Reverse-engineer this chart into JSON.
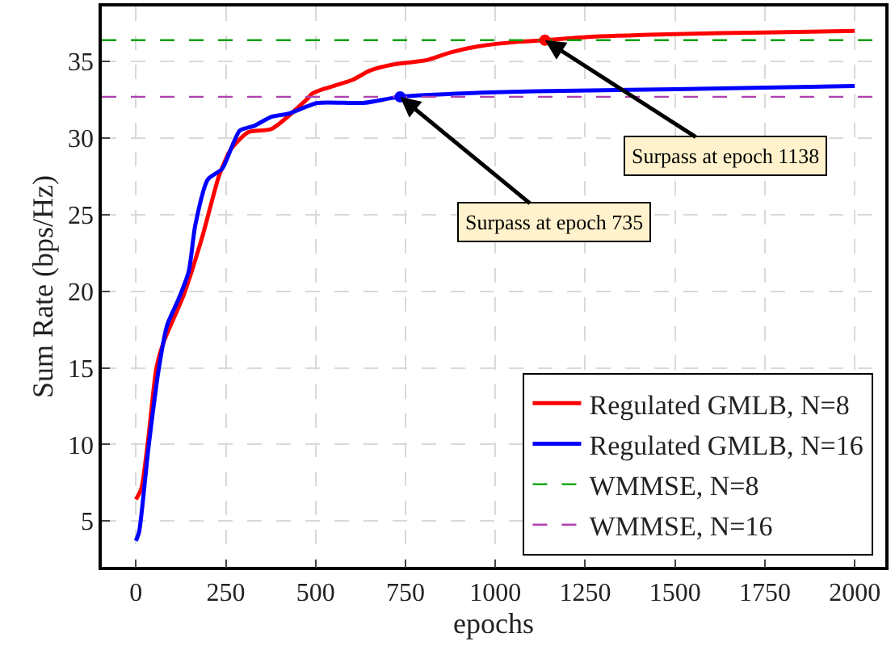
{
  "chart_data": {
    "type": "line",
    "xlabel": "epochs",
    "ylabel": "Sum Rate (bps/Hz)",
    "xlim": [
      -95,
      2085
    ],
    "ylim": [
      2,
      38.6
    ],
    "xticks": [
      0,
      250,
      500,
      750,
      1000,
      1250,
      1500,
      1750,
      2000
    ],
    "yticks": [
      5,
      10,
      15,
      20,
      25,
      30,
      35
    ],
    "grid": true,
    "legend": "bottom right",
    "series": [
      {
        "name": "Regulated GMLB, N=8",
        "color": "#ff0000",
        "line_style": "solid",
        "x": [
          0,
          15,
          35,
          57,
          79,
          132,
          184,
          232,
          265,
          313,
          377,
          474,
          490,
          521,
          602,
          650,
          714,
          810,
          876,
          954,
          1067,
          1138,
          1250,
          1500,
          1750,
          2000
        ],
        "values": [
          6.4,
          7.1,
          10.5,
          15.0,
          16.8,
          19.7,
          23.5,
          27.6,
          29.3,
          30.4,
          30.6,
          32.5,
          32.9,
          33.2,
          33.8,
          34.4,
          34.8,
          35.1,
          35.6,
          36.0,
          36.3,
          36.4,
          36.6,
          36.8,
          36.9,
          37.0
        ]
      },
      {
        "name": "Regulated GMLB, N=16",
        "color": "#0000ff",
        "line_style": "solid",
        "x": [
          0,
          9,
          35,
          64,
          87,
          117,
          147,
          165,
          200,
          240,
          289,
          329,
          377,
          425,
          505,
          633,
          735,
          1000,
          1227,
          1500,
          2000
        ],
        "values": [
          3.7,
          4.3,
          9.8,
          15.0,
          17.8,
          19.4,
          21.3,
          24.3,
          27.3,
          28.0,
          30.5,
          30.8,
          31.4,
          31.6,
          32.3,
          32.3,
          32.7,
          33.0,
          33.1,
          33.2,
          33.4
        ]
      },
      {
        "name": "WMMSE, N=8",
        "color": "#00a000",
        "line_style": "dashed",
        "x": [
          -95,
          2085
        ],
        "values": [
          36.4,
          36.4
        ]
      },
      {
        "name": "WMMSE, N=16",
        "color": "#b040b0",
        "line_style": "dashed",
        "x": [
          -95,
          2085
        ],
        "values": [
          32.7,
          32.7
        ]
      }
    ],
    "annotations": [
      {
        "text": "Surpass at epoch 735",
        "x": 735,
        "y": 32.7
      },
      {
        "text": "Surpass at epoch 1138",
        "x": 1138,
        "y": 36.4
      }
    ]
  }
}
